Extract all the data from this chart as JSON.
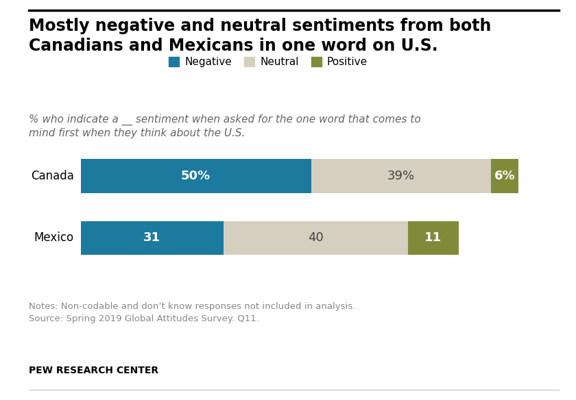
{
  "title": "Mostly negative and neutral sentiments from both\nCanadians and Mexicans in one word on U.S.",
  "subtitle": "% who indicate a __ sentiment when asked for the one word that comes to\nmind first when they think about the U.S.",
  "categories": [
    "Canada",
    "Mexico"
  ],
  "negative": [
    50,
    31
  ],
  "neutral": [
    39,
    40
  ],
  "positive": [
    6,
    11
  ],
  "negative_labels": [
    "50%",
    "31"
  ],
  "neutral_labels": [
    "39%",
    "40"
  ],
  "positive_labels": [
    "6%",
    "11"
  ],
  "neutral_label_colors": [
    "#555555",
    "#555555"
  ],
  "colors": {
    "negative": "#1B7A9E",
    "neutral": "#D5CFC0",
    "positive": "#808B3A"
  },
  "legend_labels": [
    "Negative",
    "Neutral",
    "Positive"
  ],
  "notes": "Notes: Non-codable and don’t know responses not included in analysis.\nSource: Spring 2019 Global Attitudes Survey. Q11.",
  "footer": "PEW RESEARCH CENTER",
  "background_color": "#FFFFFF",
  "bar_height": 0.55,
  "title_fontsize": 17,
  "subtitle_fontsize": 11,
  "label_fontsize": 13,
  "legend_fontsize": 11,
  "notes_fontsize": 9.5,
  "footer_fontsize": 10,
  "xlim": [
    0,
    100
  ]
}
